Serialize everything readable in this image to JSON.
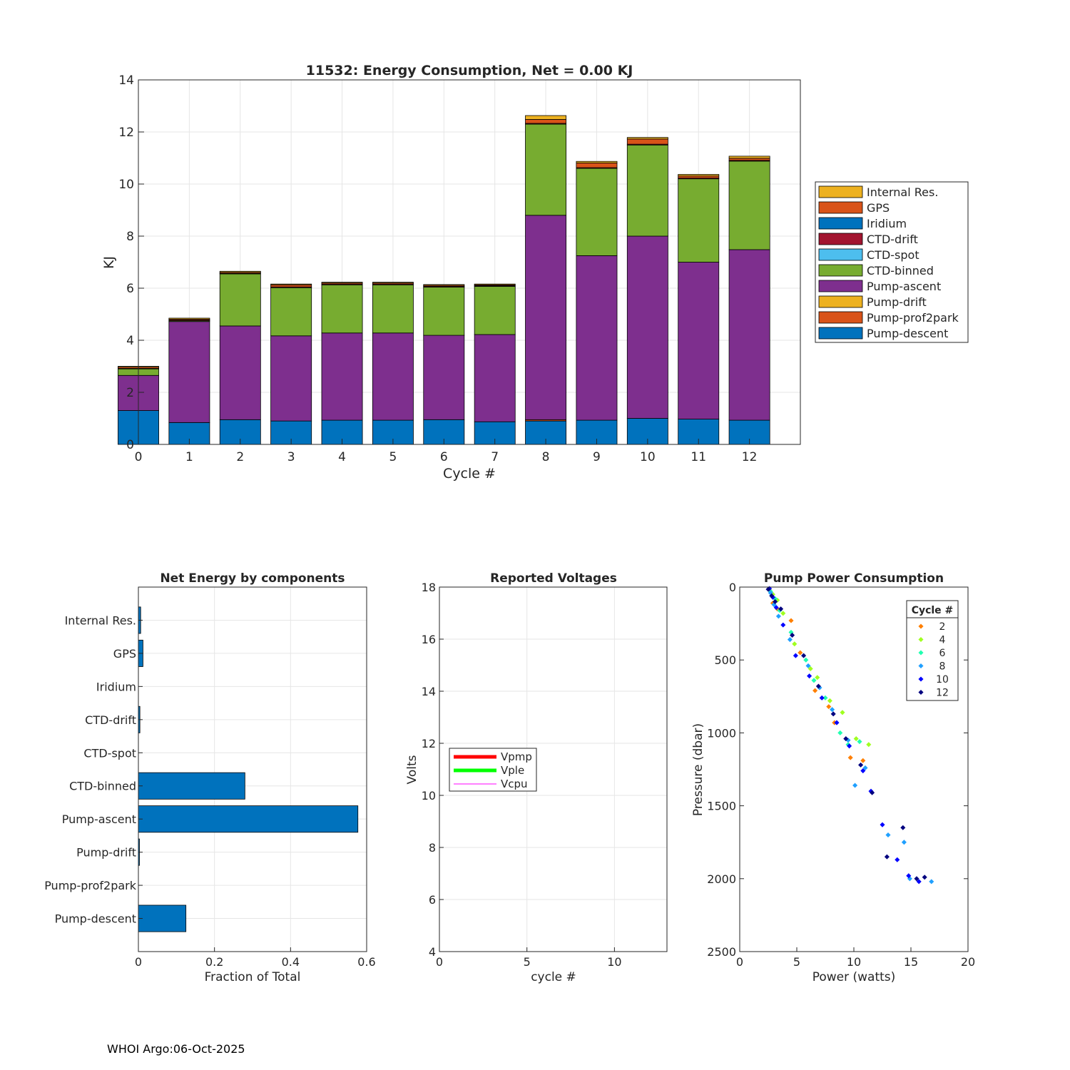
{
  "footer": "WHOI Argo:06-Oct-2025",
  "colors": {
    "internal_res": "#EDB120",
    "gps": "#D95319",
    "iridium": "#0072BD",
    "ctd_drift": "#A2142F",
    "ctd_spot": "#4DBEEE",
    "ctd_binned": "#77AC30",
    "pump_ascent": "#7E2F8E",
    "pump_drift": "#EDB120",
    "pump_prof2park": "#D95319",
    "pump_descent": "#0072BD",
    "vpmp": "#FF0000",
    "vple": "#00FF00",
    "vcpu": "#FF00FF",
    "barh": "#0072BD"
  },
  "chart_data": [
    {
      "type": "bar",
      "stacked": true,
      "title": "11532: Energy Consumption,  Net =   0.00 KJ",
      "xlabel": "Cycle #",
      "ylabel": "KJ",
      "xlim": [
        0,
        13
      ],
      "ylim": [
        0,
        14
      ],
      "xticks": [
        0,
        1,
        2,
        3,
        4,
        5,
        6,
        7,
        8,
        9,
        10,
        11,
        12
      ],
      "yticks": [
        0,
        2,
        4,
        6,
        8,
        10,
        12,
        14
      ],
      "grid": true,
      "legend_position": "outside-right",
      "legend": [
        "Internal Res.",
        "GPS",
        "Iridium",
        "CTD-drift",
        "CTD-spot",
        "CTD-binned",
        "Pump-ascent",
        "Pump-drift",
        "Pump-prof2park",
        "Pump-descent"
      ],
      "categories": [
        0,
        1,
        2,
        3,
        4,
        5,
        6,
        7,
        8,
        9,
        10,
        11,
        12
      ],
      "series": [
        {
          "name": "Pump-descent",
          "color_key": "pump_descent",
          "values": [
            1.3,
            0.84,
            0.95,
            0.9,
            0.93,
            0.93,
            0.95,
            0.87,
            0.9,
            0.93,
            1.0,
            0.97,
            0.93
          ]
        },
        {
          "name": "Pump-prof2park",
          "color_key": "pump_prof2park",
          "values": [
            0,
            0,
            0,
            0,
            0,
            0,
            0,
            0,
            0.05,
            0,
            0,
            0,
            0
          ]
        },
        {
          "name": "Pump-drift",
          "color_key": "pump_drift",
          "values": [
            0,
            0,
            0,
            0,
            0,
            0,
            0,
            0,
            0,
            0,
            0,
            0,
            0
          ]
        },
        {
          "name": "Pump-ascent",
          "color_key": "pump_ascent",
          "values": [
            1.35,
            3.88,
            3.6,
            3.27,
            3.35,
            3.35,
            3.24,
            3.35,
            7.85,
            6.32,
            7.0,
            6.03,
            6.55
          ]
        },
        {
          "name": "CTD-binned",
          "color_key": "ctd_binned",
          "values": [
            0.25,
            0.03,
            2.0,
            1.85,
            1.85,
            1.85,
            1.85,
            1.85,
            3.5,
            3.35,
            3.5,
            3.2,
            3.4
          ]
        },
        {
          "name": "CTD-spot",
          "color_key": "ctd_spot",
          "values": [
            0,
            0,
            0,
            0,
            0,
            0,
            0,
            0,
            0,
            0,
            0,
            0,
            0
          ]
        },
        {
          "name": "CTD-drift",
          "color_key": "ctd_drift",
          "values": [
            0.02,
            0.02,
            0.02,
            0.03,
            0.03,
            0.03,
            0.03,
            0.03,
            0.03,
            0.03,
            0.03,
            0.03,
            0.03
          ]
        },
        {
          "name": "Iridium",
          "color_key": "iridium",
          "values": [
            0,
            0,
            0,
            0,
            0,
            0,
            0,
            0,
            0,
            0,
            0,
            0,
            0
          ]
        },
        {
          "name": "GPS",
          "color_key": "gps",
          "values": [
            0.05,
            0.04,
            0.04,
            0.08,
            0.04,
            0.04,
            0.04,
            0.03,
            0.15,
            0.18,
            0.2,
            0.08,
            0.08
          ]
        },
        {
          "name": "Internal Res.",
          "color_key": "internal_res",
          "values": [
            0.03,
            0.04,
            0.04,
            0.03,
            0.03,
            0.03,
            0.03,
            0.03,
            0.15,
            0.06,
            0.06,
            0.06,
            0.08
          ]
        }
      ]
    },
    {
      "type": "bar",
      "orientation": "horizontal",
      "title": "Net Energy by components",
      "xlabel": "Fraction of Total",
      "xlim": [
        0,
        0.6
      ],
      "xticks": [
        0,
        0.2,
        0.4,
        0.6
      ],
      "xtick_labels": [
        "0",
        "0.2",
        "0.4",
        "0.6"
      ],
      "grid": true,
      "categories": [
        "Internal Res.",
        "GPS",
        "Iridium",
        "CTD-drift",
        "CTD-spot",
        "CTD-binned",
        "Pump-ascent",
        "Pump-drift",
        "Pump-prof2park",
        "Pump-descent"
      ],
      "values": [
        0.006,
        0.012,
        0,
        0.004,
        0,
        0.28,
        0.577,
        0.002,
        0,
        0.125
      ]
    },
    {
      "type": "line",
      "title": "Reported Voltages",
      "xlabel": "cycle #",
      "ylabel": "Volts",
      "xlim": [
        0,
        13
      ],
      "ylim": [
        4,
        18
      ],
      "xticks": [
        0,
        5,
        10
      ],
      "yticks": [
        4,
        6,
        8,
        10,
        12,
        14,
        16,
        18
      ],
      "grid": true,
      "legend_position": "left",
      "series": [
        {
          "name": "Vpmp",
          "color_key": "vpmp",
          "width": "thick",
          "x": [],
          "y": []
        },
        {
          "name": "Vple",
          "color_key": "vple",
          "width": "thick",
          "x": [],
          "y": []
        },
        {
          "name": "Vcpu",
          "color_key": "vcpu",
          "width": "thin",
          "x": [],
          "y": []
        }
      ]
    },
    {
      "type": "scatter",
      "title": "Pump Power Consumption",
      "xlabel": "Power (watts)",
      "ylabel": "Pressure (dbar)",
      "xlim": [
        0,
        20
      ],
      "ylim": [
        0,
        2500
      ],
      "y_reversed": true,
      "xticks": [
        0,
        5,
        10,
        15,
        20
      ],
      "yticks": [
        0,
        500,
        1000,
        1500,
        2000,
        2500
      ],
      "grid": false,
      "legend_title": "Cycle #",
      "legend_position": "top-right",
      "series": [
        {
          "name": "2",
          "color": "#FF7F00",
          "x": [
            2.6,
            2.9,
            3.3,
            4.5,
            5.3,
            6.6,
            7.8,
            8.3,
            9.7,
            10.8
          ],
          "y": [
            20,
            110,
            150,
            230,
            450,
            710,
            820,
            930,
            1170,
            1190
          ]
        },
        {
          "name": "4",
          "color": "#A0FF20",
          "x": [
            2.9,
            3.3,
            3.8,
            4.8,
            6.2,
            6.8,
            7.9,
            9.0,
            10.2,
            11.3
          ],
          "y": [
            50,
            90,
            180,
            390,
            560,
            620,
            780,
            860,
            1040,
            1080
          ]
        },
        {
          "name": "6",
          "color": "#20FFB0",
          "x": [
            2.7,
            3.1,
            3.5,
            4.5,
            5.8,
            6.5,
            7.5,
            8.8,
            9.5,
            10.5
          ],
          "y": [
            30,
            80,
            160,
            310,
            500,
            640,
            760,
            1000,
            1080,
            1060
          ]
        },
        {
          "name": "8",
          "color": "#20A0FF",
          "x": [
            2.7,
            3.0,
            3.4,
            4.4,
            6.0,
            7.0,
            8.1,
            9.5,
            10.1,
            11.0,
            13.0,
            14.4,
            14.9,
            16.8
          ],
          "y": [
            40,
            120,
            200,
            360,
            540,
            690,
            840,
            1050,
            1360,
            1240,
            1700,
            1750,
            2000,
            2020
          ]
        },
        {
          "name": "10",
          "color": "#0000FF",
          "x": [
            2.6,
            2.9,
            3.2,
            3.8,
            4.9,
            6.1,
            7.2,
            8.5,
            9.6,
            10.8,
            11.5,
            12.5,
            13.8,
            14.8,
            15.7
          ],
          "y": [
            10,
            70,
            140,
            260,
            470,
            610,
            760,
            930,
            1090,
            1260,
            1400,
            1630,
            1870,
            1980,
            2020
          ]
        },
        {
          "name": "12",
          "color": "#00007F",
          "x": [
            2.5,
            2.8,
            3.1,
            3.6,
            4.6,
            5.6,
            6.9,
            8.2,
            9.3,
            10.6,
            11.6,
            12.9,
            14.3,
            15.5,
            16.2
          ],
          "y": [
            15,
            60,
            100,
            150,
            330,
            470,
            680,
            870,
            1040,
            1220,
            1410,
            1850,
            1650,
            2000,
            1990
          ]
        }
      ]
    }
  ]
}
